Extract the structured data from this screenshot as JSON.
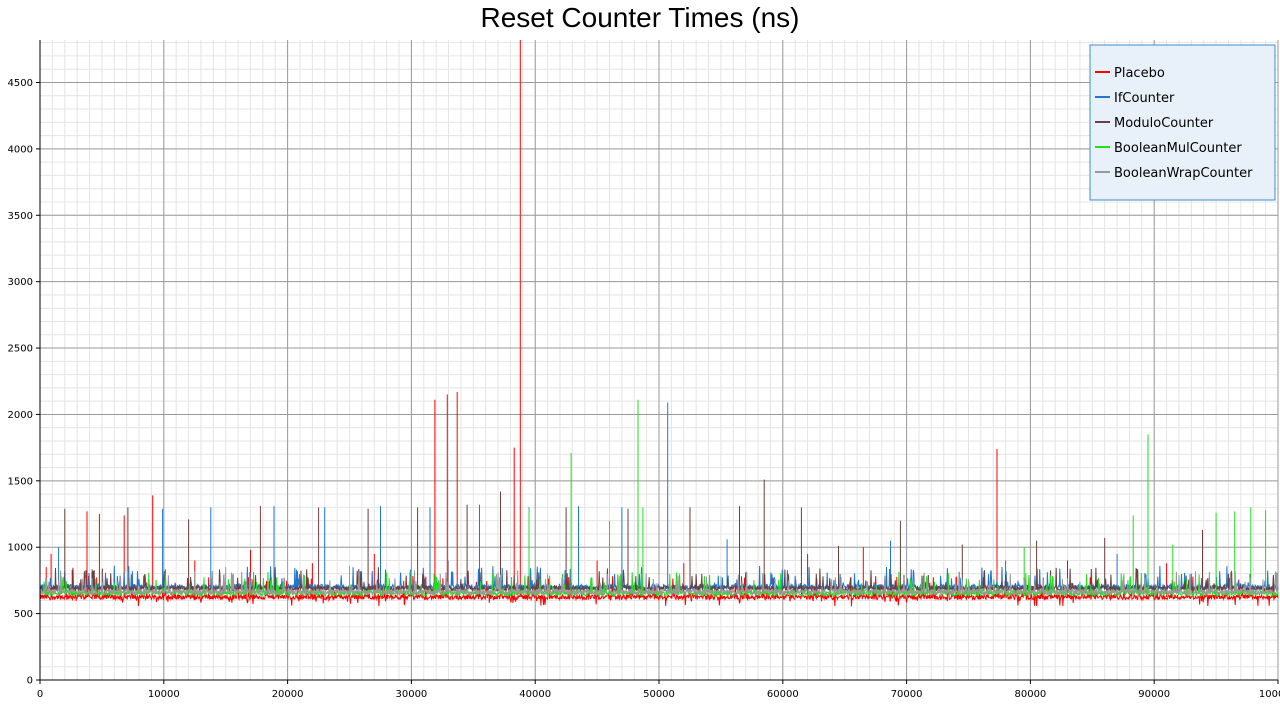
{
  "chart_data": {
    "type": "line",
    "title": "Reset Counter Times (ns)",
    "xlabel": "",
    "ylabel": "",
    "xlim": [
      0,
      100000
    ],
    "ylim": [
      0,
      4820
    ],
    "x_ticks": [
      0,
      10000,
      20000,
      30000,
      40000,
      50000,
      60000,
      70000,
      80000,
      90000,
      100000
    ],
    "x_tick_labels": [
      "0",
      "10000",
      "20000",
      "30000",
      "40000",
      "50000",
      "60000",
      "70000",
      "80000",
      "90000",
      "100000"
    ],
    "y_ticks": [
      0,
      500,
      1000,
      1500,
      2000,
      2500,
      3000,
      3500,
      4000,
      4500
    ],
    "y_tick_labels": [
      "0",
      "500",
      "1000",
      "1500",
      "2000",
      "2500",
      "3000",
      "3500",
      "4000",
      "4500"
    ],
    "grid": true,
    "legend_position": "top-right",
    "series": [
      {
        "name": "Placebo",
        "color": "#ff0000",
        "baseline": 625,
        "spikes": [
          {
            "x": 500,
            "y": 850
          },
          {
            "x": 900,
            "y": 950
          },
          {
            "x": 2600,
            "y": 830
          },
          {
            "x": 3800,
            "y": 1270
          },
          {
            "x": 4800,
            "y": 1250
          },
          {
            "x": 6800,
            "y": 1240
          },
          {
            "x": 9100,
            "y": 1390
          },
          {
            "x": 12500,
            "y": 900
          },
          {
            "x": 17000,
            "y": 980
          },
          {
            "x": 22000,
            "y": 880
          },
          {
            "x": 27000,
            "y": 950
          },
          {
            "x": 31900,
            "y": 2110
          },
          {
            "x": 32900,
            "y": 2150
          },
          {
            "x": 33700,
            "y": 2170
          },
          {
            "x": 35500,
            "y": 1000
          },
          {
            "x": 38300,
            "y": 1750
          },
          {
            "x": 38800,
            "y": 4820
          },
          {
            "x": 45000,
            "y": 900
          },
          {
            "x": 52000,
            "y": 880
          },
          {
            "x": 62000,
            "y": 950
          },
          {
            "x": 66500,
            "y": 1000
          },
          {
            "x": 77300,
            "y": 1740
          },
          {
            "x": 83000,
            "y": 900
          },
          {
            "x": 91000,
            "y": 880
          }
        ]
      },
      {
        "name": "IfCounter",
        "color": "#1f77d0",
        "baseline": 700,
        "spikes": [
          {
            "x": 1500,
            "y": 1000
          },
          {
            "x": 9900,
            "y": 1290
          },
          {
            "x": 13800,
            "y": 1300
          },
          {
            "x": 18900,
            "y": 1310
          },
          {
            "x": 23000,
            "y": 1300
          },
          {
            "x": 27500,
            "y": 1310
          },
          {
            "x": 31500,
            "y": 1300
          },
          {
            "x": 35500,
            "y": 1320
          },
          {
            "x": 39500,
            "y": 1300
          },
          {
            "x": 43500,
            "y": 1310
          },
          {
            "x": 47000,
            "y": 1300
          },
          {
            "x": 50700,
            "y": 2090
          },
          {
            "x": 55500,
            "y": 1060
          },
          {
            "x": 68700,
            "y": 1050
          },
          {
            "x": 78000,
            "y": 900
          },
          {
            "x": 87000,
            "y": 950
          }
        ]
      },
      {
        "name": "ModuloCounter",
        "color": "#6b3f3f",
        "baseline": 690,
        "spikes": [
          {
            "x": 2000,
            "y": 1290
          },
          {
            "x": 7100,
            "y": 1300
          },
          {
            "x": 12000,
            "y": 1210
          },
          {
            "x": 17800,
            "y": 1310
          },
          {
            "x": 22500,
            "y": 1300
          },
          {
            "x": 26500,
            "y": 1290
          },
          {
            "x": 30500,
            "y": 1300
          },
          {
            "x": 34500,
            "y": 1320
          },
          {
            "x": 37200,
            "y": 1420
          },
          {
            "x": 42500,
            "y": 1300
          },
          {
            "x": 47500,
            "y": 1290
          },
          {
            "x": 52500,
            "y": 1300
          },
          {
            "x": 56500,
            "y": 1310
          },
          {
            "x": 58500,
            "y": 1510
          },
          {
            "x": 61500,
            "y": 1300
          },
          {
            "x": 64500,
            "y": 1010
          },
          {
            "x": 69500,
            "y": 1200
          },
          {
            "x": 74500,
            "y": 1020
          },
          {
            "x": 80500,
            "y": 1050
          },
          {
            "x": 86000,
            "y": 1070
          },
          {
            "x": 93900,
            "y": 1130
          }
        ]
      },
      {
        "name": "BooleanMulCounter",
        "color": "#22dd22",
        "baseline": 655,
        "spikes": [
          {
            "x": 39500,
            "y": 1290
          },
          {
            "x": 42900,
            "y": 1710
          },
          {
            "x": 46000,
            "y": 1200
          },
          {
            "x": 48300,
            "y": 2110
          },
          {
            "x": 48700,
            "y": 1300
          },
          {
            "x": 79500,
            "y": 1000
          },
          {
            "x": 88300,
            "y": 1240
          },
          {
            "x": 89500,
            "y": 1850
          },
          {
            "x": 91500,
            "y": 1020
          },
          {
            "x": 95000,
            "y": 1260
          },
          {
            "x": 96500,
            "y": 1270
          },
          {
            "x": 97800,
            "y": 1300
          },
          {
            "x": 99000,
            "y": 1280
          }
        ]
      },
      {
        "name": "BooleanWrapCounter",
        "color": "#999999",
        "baseline": 665,
        "spikes": [
          {
            "x": 5000,
            "y": 820
          },
          {
            "x": 15000,
            "y": 850
          },
          {
            "x": 25000,
            "y": 860
          },
          {
            "x": 33000,
            "y": 900
          },
          {
            "x": 41000,
            "y": 800
          },
          {
            "x": 55000,
            "y": 780
          },
          {
            "x": 75000,
            "y": 760
          },
          {
            "x": 92000,
            "y": 780
          }
        ]
      }
    ]
  }
}
